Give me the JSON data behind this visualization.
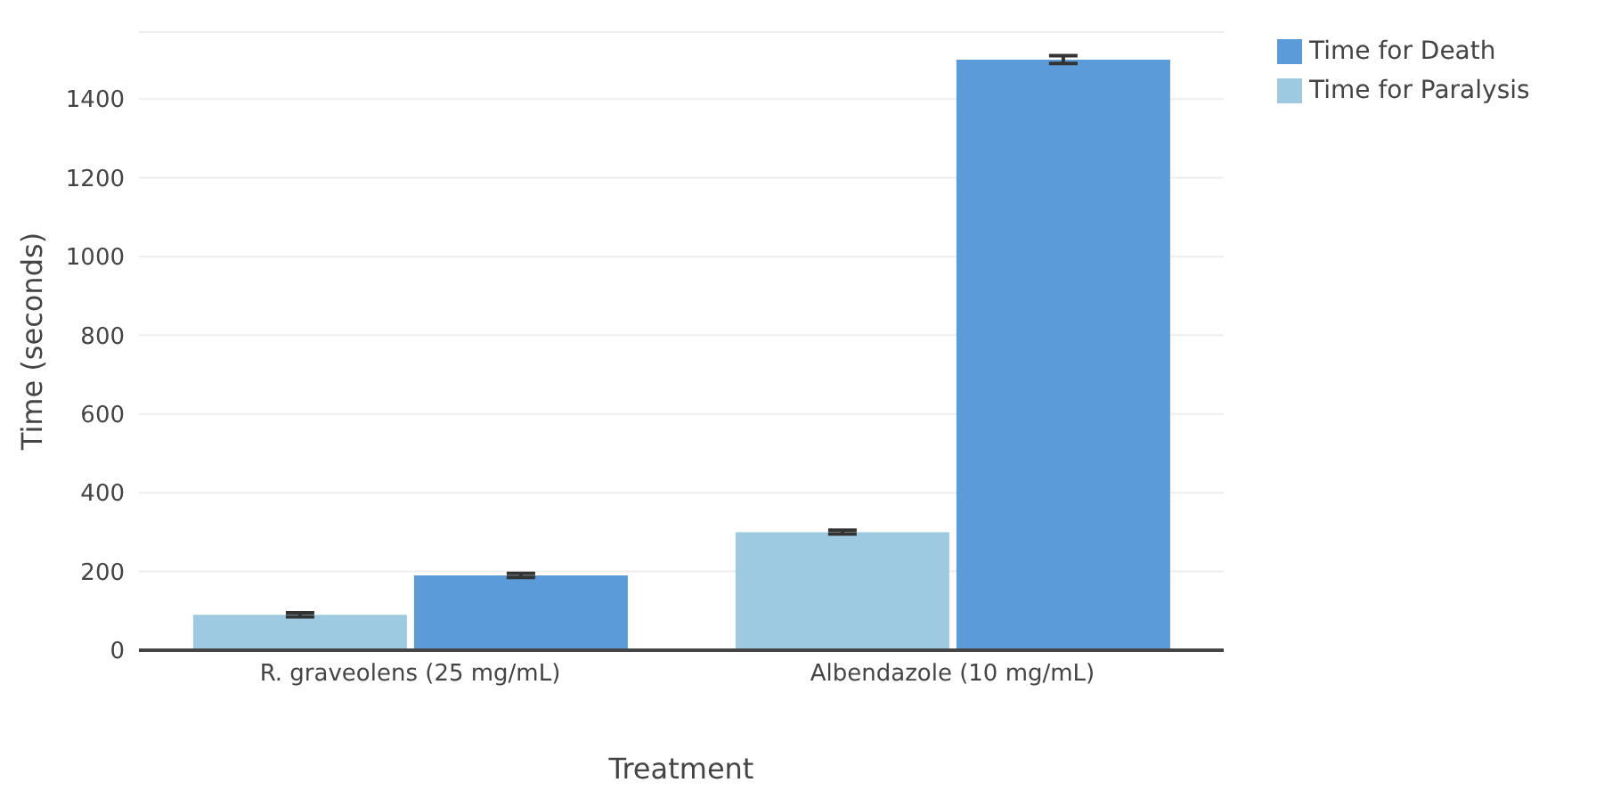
{
  "chart_data": {
    "type": "bar",
    "xlabel": "Treatment",
    "ylabel": "Time (seconds)",
    "categories": [
      "R. graveolens (25 mg/mL)",
      "Albendazole (10 mg/mL)"
    ],
    "series": [
      {
        "name": "Time for Paralysis",
        "color": "#9ecae1",
        "values": [
          90,
          300
        ],
        "errors": [
          5,
          5
        ]
      },
      {
        "name": "Time for Death",
        "color": "#5b9bd9",
        "values": [
          190,
          1500
        ],
        "errors": [
          5,
          10
        ]
      }
    ],
    "ylim": [
      0,
      1570
    ],
    "yticks": [
      0,
      200,
      400,
      600,
      800,
      1000,
      1200,
      1400
    ],
    "grid": "y",
    "legend": "top right"
  }
}
